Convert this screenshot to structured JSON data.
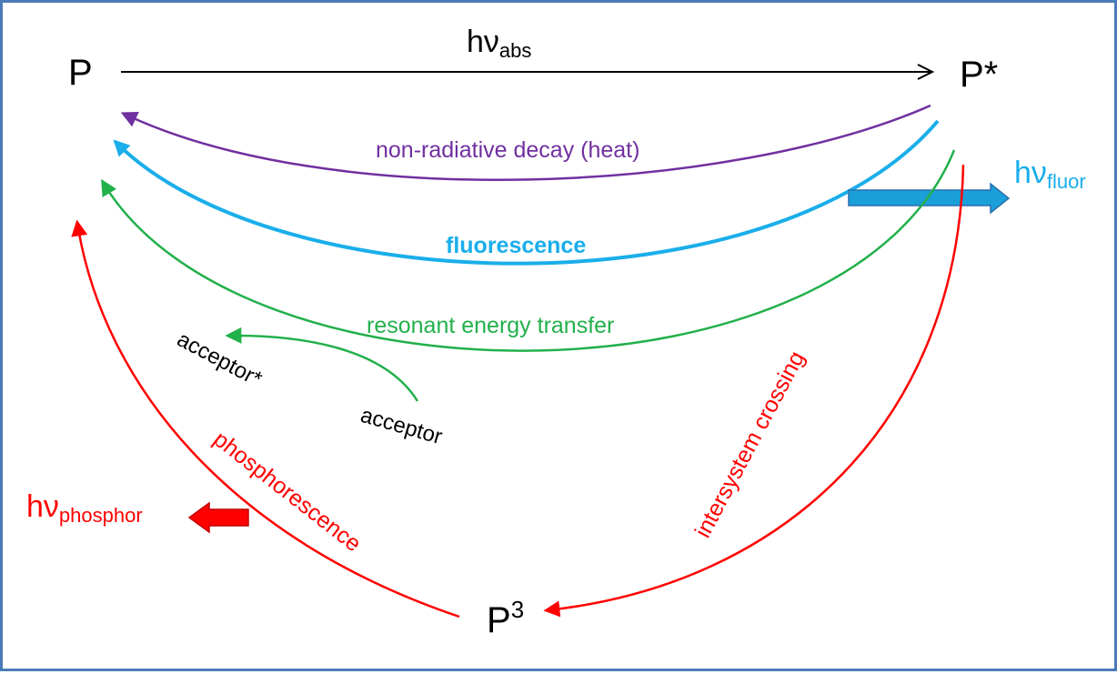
{
  "states": {
    "ground": "P",
    "excited": "P*",
    "triplet_base": "P",
    "triplet_sup": "3"
  },
  "absorption": {
    "prefix": "hν",
    "subscript": "abs"
  },
  "emissions": {
    "fluor": {
      "prefix": "hν",
      "subscript": "fluor"
    },
    "phosphor": {
      "prefix": "hν",
      "subscript": "phosphor"
    }
  },
  "processes": {
    "non_radiative": "non-radiative decay (heat)",
    "fluorescence": "fluorescence",
    "energy_transfer": "resonant energy transfer",
    "intersystem_crossing": "intersystem crossing",
    "phosphorescence": "phosphorescence"
  },
  "acceptor": {
    "ground": "acceptor",
    "excited": "acceptor*"
  },
  "colors": {
    "black": "#000000",
    "purple": "#7030a0",
    "blue": "#1aaeea",
    "green": "#22b04b",
    "red": "#ff0000",
    "border": "#4a7bb8"
  }
}
